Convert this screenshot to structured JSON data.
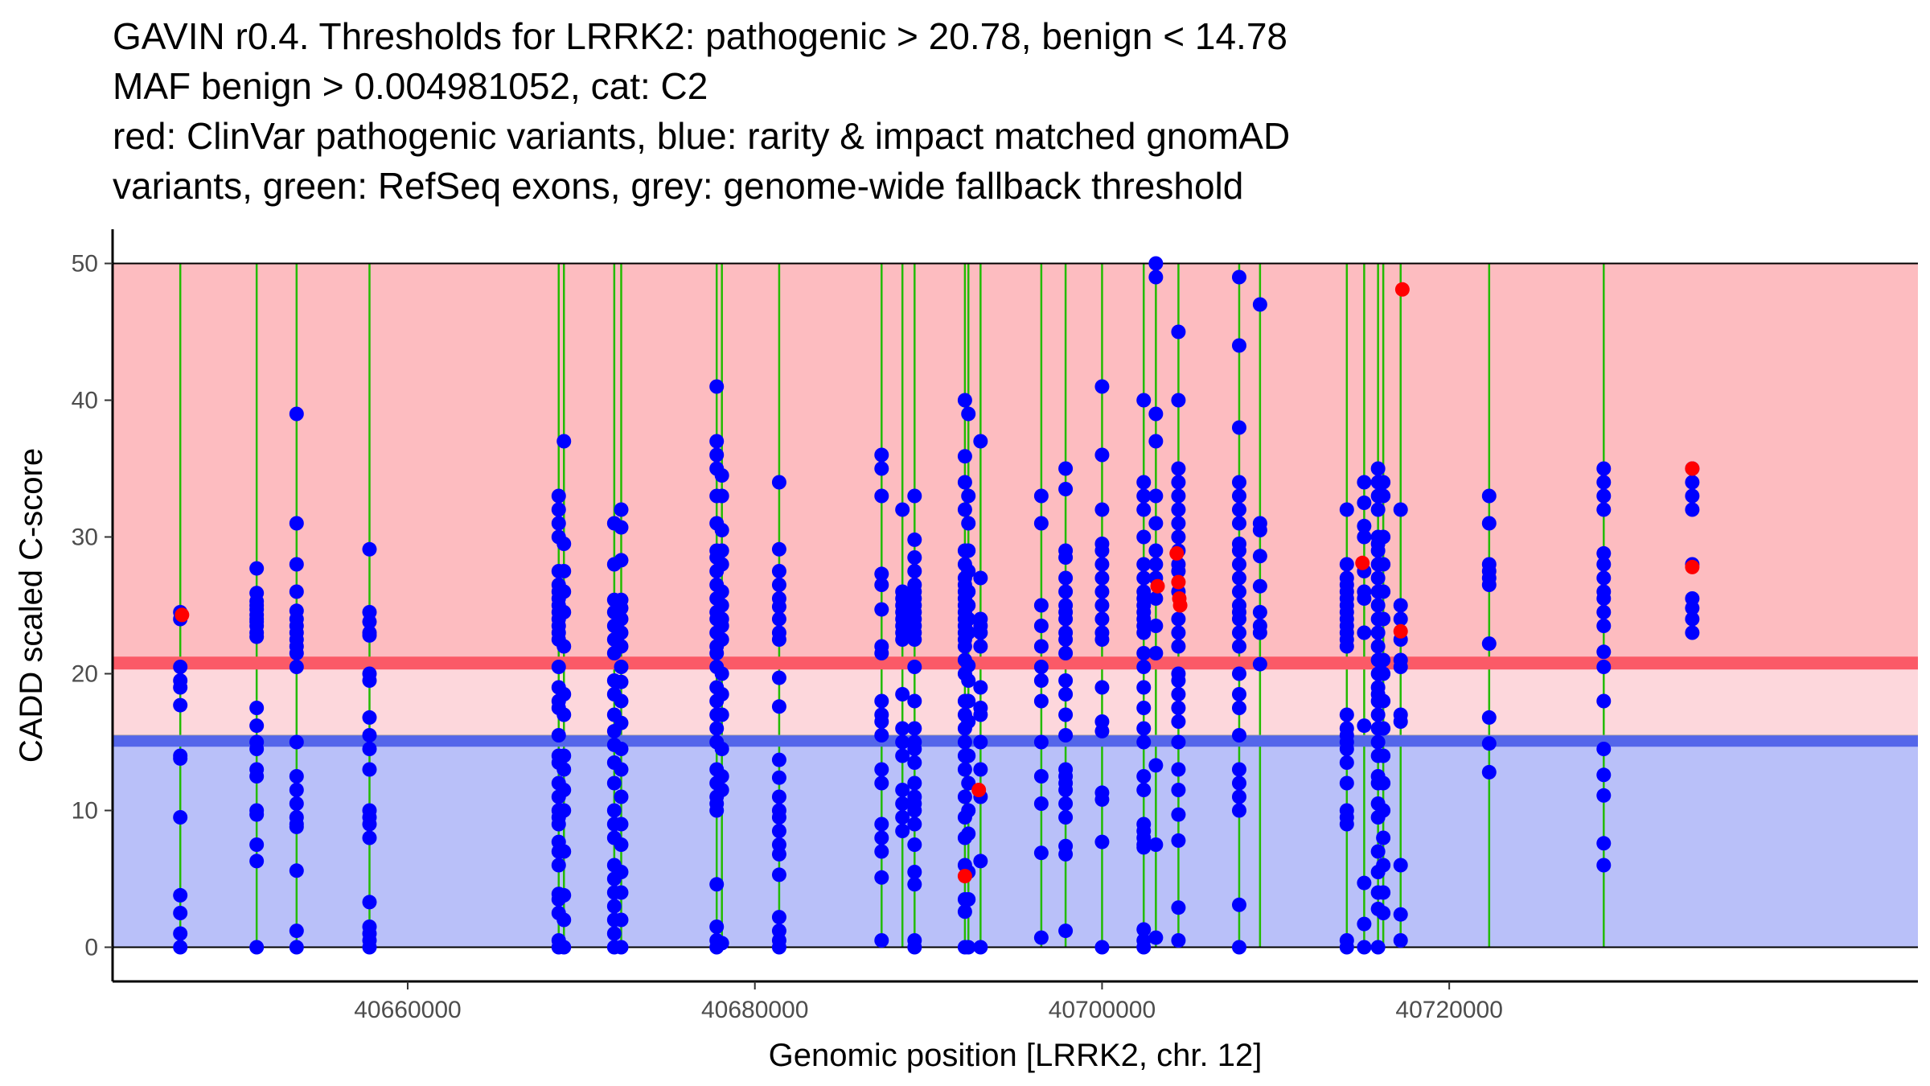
{
  "chart_data": {
    "type": "scatter",
    "title_lines": [
      "GAVIN r0.4. Thresholds for LRRK2: pathogenic > 20.78, benign < 14.78",
      "MAF benign > 0.004981052, cat: C2",
      "red: ClinVar pathogenic variants, blue: rarity & impact matched gnomAD",
      "variants, green: RefSeq exons, grey: genome-wide fallback threshold"
    ],
    "xlabel": "Genomic position [LRRK2, chr. 12]",
    "ylabel": "CADD scaled C-score",
    "xlim": [
      40643000,
      40747000
    ],
    "ylim": [
      -2.5,
      52.5
    ],
    "x_ticks": [
      40660000,
      40680000,
      40700000,
      40720000
    ],
    "x_tick_labels": [
      "40660000",
      "40680000",
      "40700000",
      "40720000"
    ],
    "y_ticks": [
      0,
      10,
      20,
      30,
      40,
      50
    ],
    "y_tick_labels": [
      "0",
      "10",
      "20",
      "30",
      "40",
      "50"
    ],
    "thresholds": {
      "pathogenic": 20.78,
      "benign": 14.78,
      "genome_wide_fallback": 15.3
    },
    "exon_positions": [
      40646900,
      40651300,
      40653600,
      40657800,
      40668700,
      40669000,
      40671900,
      40672300,
      40677800,
      40678100,
      40681400,
      40687300,
      40688500,
      40689200,
      40692100,
      40692300,
      40693000,
      40696500,
      40697900,
      40700000,
      40702400,
      40703100,
      40704400,
      40707900,
      40709100,
      40714100,
      40715100,
      40715900,
      40716200,
      40717200,
      40722300,
      40728900
    ],
    "colors": {
      "pathogenic_zone": "#fdbcc0",
      "mid_zone": "#fdd7dc",
      "benign_zone": "#b9c0f9",
      "pathogenic_line": "#fb5a67",
      "benign_line": "#5466ea",
      "fallback_line": "#9a9a9a",
      "exon": "#22bb00",
      "gnomad": "#0000ff",
      "clinvar": "#ff0000"
    },
    "series": [
      {
        "name": "ClinVar pathogenic variants",
        "color": "#ff0000",
        "points": [
          [
            40647000,
            24.3
          ],
          [
            40692100,
            5.2
          ],
          [
            40692900,
            11.5
          ],
          [
            40703200,
            26.4
          ],
          [
            40704300,
            28.8
          ],
          [
            40704400,
            26.7
          ],
          [
            40704450,
            25.5
          ],
          [
            40704500,
            25.0
          ],
          [
            40715000,
            28.1
          ],
          [
            40717300,
            48.1
          ],
          [
            40717200,
            23.1
          ],
          [
            40734000,
            35.0
          ],
          [
            40734000,
            27.8
          ]
        ]
      },
      {
        "name": "rarity & impact matched gnomAD variants",
        "color": "#0000ff",
        "columns": [
          {
            "x": 40646900,
            "y": [
              24.5,
              24.0,
              20.5,
              19.5,
              19.0,
              17.7,
              14.0,
              13.8,
              9.5,
              3.8,
              2.5,
              1.0,
              0.0
            ]
          },
          {
            "x": 40651300,
            "y": [
              27.7,
              25.9,
              25.3,
              25.0,
              24.7,
              24.3,
              24.0,
              23.8,
              23.5,
              23.0,
              22.7,
              17.5,
              16.2,
              15.0,
              14.5,
              13.0,
              12.5,
              10.0,
              9.7,
              7.5,
              6.3,
              0.0
            ]
          },
          {
            "x": 40653600,
            "y": [
              39.0,
              31.0,
              28.0,
              26.0,
              24.6,
              24.0,
              23.5,
              23.0,
              22.5,
              22.0,
              21.5,
              20.5,
              15.0,
              12.5,
              11.5,
              10.5,
              9.5,
              9.0,
              8.8,
              5.6,
              1.2,
              0.0
            ]
          },
          {
            "x": 40657800,
            "y": [
              29.1,
              24.5,
              23.8,
              23.0,
              22.8,
              20.0,
              19.5,
              16.8,
              15.5,
              14.5,
              13.0,
              10.0,
              9.5,
              9.0,
              8.0,
              3.3,
              1.5,
              1.0,
              0.5,
              0.0
            ]
          },
          {
            "x": 40668700,
            "y": [
              33.0,
              32.0,
              31.0,
              30.0,
              27.5,
              26.5,
              26.0,
              25.5,
              25.0,
              24.5,
              24.0,
              23.5,
              23.0,
              22.5,
              20.5,
              19.0,
              18.0,
              17.5,
              15.5,
              14.0,
              13.5,
              12.0,
              11.0,
              10.0,
              9.5,
              9.0,
              7.7,
              7.0,
              6.0,
              3.9,
              3.5,
              2.5,
              0.5,
              0.0
            ]
          },
          {
            "x": 40669000,
            "y": [
              37.0,
              29.5,
              27.5,
              26.0,
              24.5,
              22.0,
              18.5,
              17.0,
              14.0,
              13.0,
              11.5,
              10.0,
              7.0,
              3.8,
              2.0,
              0.0
            ]
          },
          {
            "x": 40671900,
            "y": [
              31.0,
              28.0,
              25.4,
              24.5,
              23.5,
              22.5,
              21.5,
              19.5,
              18.5,
              17.0,
              15.8,
              14.8,
              13.5,
              12.0,
              10.0,
              9.0,
              8.0,
              6.0,
              5.0,
              4.0,
              3.0,
              2.0,
              1.0,
              0.0
            ]
          },
          {
            "x": 40672300,
            "y": [
              32.0,
              30.7,
              28.3,
              25.4,
              24.8,
              24.0,
              23.0,
              22.0,
              20.5,
              19.4,
              18.0,
              16.4,
              14.5,
              13.0,
              11.0,
              9.0,
              7.5,
              5.5,
              4.0,
              2.0,
              0.0
            ]
          },
          {
            "x": 40677800,
            "y": [
              41.0,
              37.0,
              36.0,
              35.0,
              33.0,
              31.0,
              29.0,
              28.5,
              27.5,
              26.5,
              25.5,
              24.5,
              24.0,
              23.0,
              22.0,
              21.5,
              20.5,
              19.0,
              18.0,
              17.0,
              16.0,
              15.0,
              13.0,
              12.0,
              11.0,
              10.5,
              10.0,
              4.6,
              1.5,
              0.5,
              0.0
            ]
          },
          {
            "x": 40678100,
            "y": [
              34.5,
              33.0,
              30.5,
              29.0,
              28.0,
              26.0,
              25.0,
              24.0,
              23.5,
              22.5,
              20.0,
              18.5,
              17.0,
              14.5,
              12.5,
              11.5,
              0.3
            ]
          },
          {
            "x": 40681400,
            "y": [
              34.0,
              29.1,
              27.5,
              26.5,
              25.5,
              24.9,
              24.0,
              23.0,
              22.5,
              19.7,
              17.6,
              13.7,
              12.4,
              11.0,
              10.0,
              9.5,
              8.5,
              7.5,
              6.8,
              5.3,
              2.2,
              1.2,
              0.5,
              0.0
            ]
          },
          {
            "x": 40687300,
            "y": [
              36.0,
              35.0,
              33.0,
              27.3,
              26.5,
              24.7,
              22.0,
              21.5,
              18.0,
              17.0,
              16.5,
              15.5,
              13.0,
              12.0,
              9.0,
              8.0,
              7.0,
              5.1,
              0.5
            ]
          },
          {
            "x": 40688500,
            "y": [
              32.0,
              26.0,
              25.5,
              25.0,
              24.5,
              24.0,
              23.5,
              23.0,
              22.5,
              18.5,
              16.0,
              15.0,
              14.0,
              11.5,
              10.5,
              9.5,
              8.5
            ]
          },
          {
            "x": 40689200,
            "y": [
              33.0,
              29.8,
              28.5,
              27.5,
              26.5,
              26.0,
              25.5,
              25.0,
              24.5,
              24.0,
              23.5,
              23.0,
              22.5,
              20.5,
              18.0,
              16.0,
              15.0,
              14.5,
              13.5,
              12.0,
              11.0,
              10.5,
              10.0,
              9.0,
              7.5,
              5.5,
              4.6,
              0.5,
              0.0
            ]
          },
          {
            "x": 40692100,
            "y": [
              40.0,
              35.9,
              34.0,
              32.0,
              29.0,
              28.0,
              27.0,
              26.5,
              26.0,
              25.5,
              25.0,
              24.5,
              24.0,
              23.5,
              23.0,
              22.5,
              22.0,
              21.0,
              20.0,
              18.0,
              17.0,
              16.0,
              15.0,
              14.0,
              13.0,
              11.0,
              9.5,
              8.0,
              6.0,
              3.5,
              2.6,
              0.0
            ]
          },
          {
            "x": 40692300,
            "y": [
              39.0,
              33.0,
              31.0,
              29.0,
              27.5,
              26.0,
              25.0,
              24.0,
              23.0,
              20.6,
              19.5,
              18.0,
              16.5,
              14.0,
              12.0,
              10.0,
              8.3,
              5.5,
              3.5,
              0.0
            ]
          },
          {
            "x": 40693000,
            "y": [
              37.0,
              27.0,
              24.0,
              23.5,
              23.0,
              22.0,
              19.0,
              17.5,
              17.0,
              15.0,
              13.0,
              11.0,
              6.3,
              0.0
            ]
          },
          {
            "x": 40696500,
            "y": [
              33.0,
              31.0,
              25.0,
              23.5,
              22.0,
              20.5,
              19.5,
              18.0,
              15.0,
              12.5,
              10.5,
              6.9,
              0.7
            ]
          },
          {
            "x": 40697900,
            "y": [
              35.0,
              33.5,
              29.0,
              28.5,
              27.0,
              26.0,
              25.0,
              24.5,
              24.0,
              23.0,
              22.5,
              21.5,
              19.5,
              18.5,
              17.0,
              15.5,
              13.0,
              12.5,
              12.0,
              11.5,
              10.5,
              9.5,
              7.4,
              6.8,
              1.2
            ]
          },
          {
            "x": 40700000,
            "y": [
              41.0,
              36.0,
              32.0,
              29.5,
              29.0,
              28.0,
              27.0,
              26.0,
              25.0,
              24.0,
              23.0,
              22.5,
              19.0,
              16.5,
              15.8,
              11.3,
              10.8,
              7.7,
              0.0
            ]
          },
          {
            "x": 40702400,
            "y": [
              40.0,
              34.0,
              33.0,
              32.0,
              30.0,
              28.0,
              27.0,
              26.0,
              25.5,
              25.0,
              24.5,
              24.0,
              23.5,
              23.0,
              21.5,
              20.5,
              19.0,
              17.5,
              16.0,
              15.0,
              12.5,
              11.5,
              9.0,
              8.5,
              8.0,
              7.5,
              7.3,
              1.3,
              0.5,
              0.0
            ]
          },
          {
            "x": 40703100,
            "y": [
              50.0,
              49.0,
              39.0,
              37.0,
              33.0,
              31.0,
              29.0,
              28.0,
              27.0,
              25.5,
              23.5,
              21.5,
              13.3,
              7.5,
              0.7
            ]
          },
          {
            "x": 40704400,
            "y": [
              45.0,
              40.0,
              35.0,
              34.0,
              33.0,
              32.0,
              31.0,
              30.0,
              29.0,
              28.0,
              27.5,
              26.0,
              24.0,
              23.0,
              22.0,
              20.0,
              19.5,
              18.5,
              17.5,
              16.5,
              15.0,
              13.0,
              11.5,
              9.7,
              7.8,
              2.9,
              0.5
            ]
          },
          {
            "x": 40707900,
            "y": [
              49.0,
              44.0,
              38.0,
              34.0,
              33.0,
              32.0,
              31.0,
              29.5,
              29.0,
              28.0,
              27.0,
              26.0,
              25.0,
              24.5,
              24.0,
              23.0,
              22.0,
              20.0,
              18.5,
              17.5,
              15.5,
              13.0,
              12.0,
              11.0,
              10.0,
              3.1,
              0.0
            ]
          },
          {
            "x": 40709100,
            "y": [
              47.0,
              31.0,
              30.5,
              28.6,
              26.4,
              24.5,
              23.5,
              23.0,
              20.7
            ]
          },
          {
            "x": 40714100,
            "y": [
              32.0,
              28.0,
              27.0,
              26.5,
              26.0,
              25.5,
              25.0,
              24.5,
              24.0,
              23.5,
              23.0,
              22.5,
              22.0,
              17.0,
              16.0,
              15.5,
              15.0,
              14.5,
              13.5,
              12.0,
              10.0,
              9.5,
              9.0,
              0.5,
              0.0
            ]
          },
          {
            "x": 40715100,
            "y": [
              34.0,
              32.5,
              30.8,
              30.0,
              27.5,
              26.0,
              25.5,
              23.0,
              16.2,
              4.7,
              1.7,
              0.0
            ]
          },
          {
            "x": 40715900,
            "y": [
              35.0,
              34.0,
              33.0,
              32.0,
              30.0,
              29.5,
              29.0,
              28.0,
              27.0,
              26.0,
              25.0,
              24.0,
              23.0,
              22.0,
              21.0,
              20.0,
              19.0,
              18.5,
              18.0,
              17.0,
              16.0,
              15.0,
              14.0,
              12.5,
              12.0,
              10.5,
              9.5,
              7.0,
              5.5,
              4.0,
              2.8,
              0.0
            ]
          },
          {
            "x": 40716200,
            "y": [
              34.0,
              33.0,
              30.0,
              28.0,
              26.0,
              24.0,
              21.0,
              20.0,
              18.0,
              16.0,
              14.0,
              12.0,
              10.0,
              8.0,
              6.0,
              4.0,
              2.5
            ]
          },
          {
            "x": 40717200,
            "y": [
              32.0,
              25.0,
              24.0,
              22.5,
              21.0,
              20.5,
              17.0,
              16.5,
              6.0,
              2.4,
              0.5
            ]
          },
          {
            "x": 40722300,
            "y": [
              33.0,
              31.0,
              28.0,
              27.5,
              27.0,
              26.5,
              22.2,
              16.8,
              14.9,
              12.8
            ]
          },
          {
            "x": 40728900,
            "y": [
              35.0,
              34.0,
              33.0,
              32.0,
              28.8,
              28.0,
              27.0,
              26.0,
              25.5,
              24.5,
              23.5,
              21.6,
              20.5,
              18.0,
              14.5,
              12.6,
              11.1,
              7.6,
              6.0
            ]
          },
          {
            "x": 40734000,
            "y": [
              35.0,
              34.0,
              33.0,
              32.0,
              28.0,
              25.5,
              24.8,
              24.0,
              23.0
            ]
          }
        ]
      }
    ]
  }
}
